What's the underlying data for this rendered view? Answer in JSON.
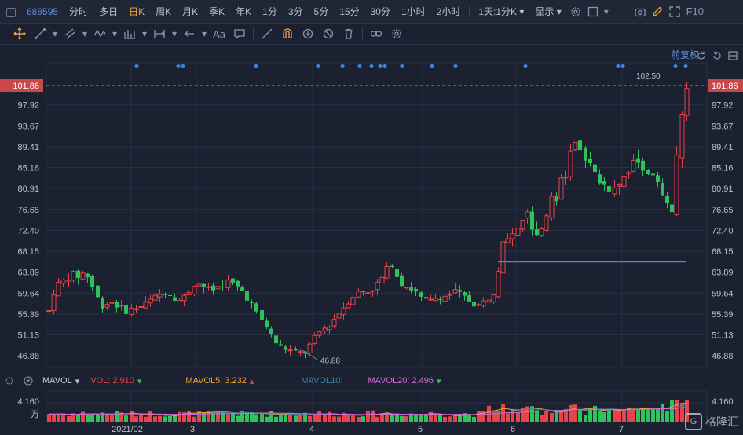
{
  "header": {
    "code": "688595",
    "periods": [
      "分时",
      "多日",
      "日K",
      "周K",
      "月K",
      "季K",
      "年K",
      "1分",
      "3分",
      "5分",
      "15分",
      "30分",
      "1小时",
      "2小时"
    ],
    "active_period": "日K",
    "range_label": "1天",
    "minute_label": "1分K",
    "display_label": "显示",
    "f10_label": "F10"
  },
  "toolbar": {
    "text_tool": "Aa"
  },
  "adjust_label": "前复权",
  "colors": {
    "up": "#e8424a",
    "down": "#2fc25b",
    "grid": "#283044",
    "axis_text": "#b9c0cc",
    "dot": "#3b82e6",
    "current_price_line": "#e0863a",
    "highlight_label_bg": "#c84848",
    "mavol5": "#f0a63a",
    "mavol10": "#3f7fa5",
    "mavol20": "#d66bd6"
  },
  "price_axis": {
    "labels": [
      "97.92",
      "93.67",
      "89.41",
      "85.16",
      "80.91",
      "76.65",
      "72.40",
      "68.15",
      "63.89",
      "59.64",
      "55.39",
      "51.13",
      "46.88"
    ],
    "current_price": "101.86"
  },
  "chart_data": {
    "type": "candlestick",
    "ylim": [
      44.5,
      106.5
    ],
    "x_labels": [
      "2021/02",
      "3",
      "4",
      "5",
      "6",
      "7"
    ],
    "high_marker": "102.50",
    "low_marker": "46.88",
    "volume_axis_label": "4.160",
    "volume_unit": "万"
  },
  "volume_legend": {
    "name": "MAVOL",
    "vol": "VOL: 2.910",
    "mavol5": "MAVOL5: 3.232",
    "mavol10": "MAVOL10:",
    "mavol20": "MAVOL20: 2.496"
  },
  "watermark": "格隆汇"
}
